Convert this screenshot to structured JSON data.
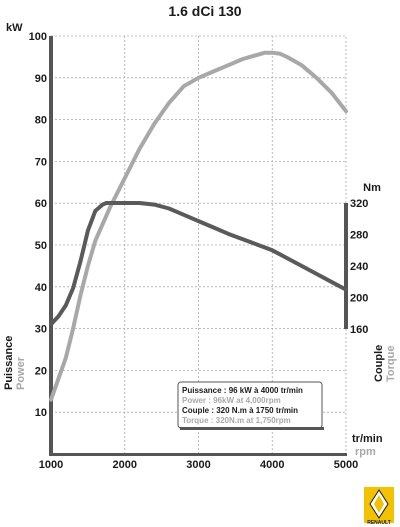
{
  "chart_data": {
    "type": "line",
    "title": "1.6 dCi 130",
    "x_unit_top": "tr/min",
    "x_unit_bottom": "rpm",
    "xlim": [
      1000,
      5000
    ],
    "x_ticks": [
      "1000",
      "2000",
      "3000",
      "4000",
      "5000"
    ],
    "x_tick_values": [
      1000,
      2000,
      3000,
      4000,
      5000
    ],
    "left_axis": {
      "unit": "kW",
      "label_fr": "Puissance",
      "label_en": "Power",
      "ylim": [
        0,
        100
      ],
      "ticks": [
        "10",
        "20",
        "30",
        "40",
        "50",
        "60",
        "70",
        "80",
        "90",
        "100"
      ],
      "tick_values": [
        10,
        20,
        30,
        40,
        50,
        60,
        70,
        80,
        90,
        100
      ]
    },
    "right_axis": {
      "unit": "Nm",
      "label_fr": "Couple",
      "label_en": "Torque",
      "ylim": [
        160,
        320
      ],
      "ticks": [
        "160",
        "200",
        "240",
        "280",
        "320"
      ],
      "tick_values": [
        160,
        200,
        240,
        280,
        320
      ]
    },
    "series": [
      {
        "name": "Power",
        "axis": "left",
        "color": "#a8a8a8",
        "x": [
          1000,
          1100,
          1200,
          1300,
          1400,
          1500,
          1600,
          1800,
          2000,
          2200,
          2400,
          2600,
          2800,
          3000,
          3200,
          3400,
          3600,
          3800,
          3900,
          4000,
          4100,
          4200,
          4400,
          4600,
          4800,
          5000
        ],
        "y": [
          13,
          18,
          23,
          30,
          38,
          45,
          51,
          59,
          66,
          73,
          79,
          84,
          88,
          90,
          91.5,
          93,
          94.5,
          95.5,
          96,
          96,
          95.8,
          95,
          93,
          90,
          86.5,
          82
        ]
      },
      {
        "name": "Torque",
        "axis": "right",
        "color": "#5a5a5a",
        "x": [
          1000,
          1100,
          1200,
          1300,
          1400,
          1500,
          1600,
          1700,
          1750,
          1800,
          2000,
          2200,
          2400,
          2600,
          2800,
          3000,
          3200,
          3400,
          3600,
          3800,
          4000,
          4200,
          4400,
          4600,
          4800,
          5000
        ],
        "y": [
          166,
          176,
          190,
          212,
          246,
          285,
          310,
          318,
          320,
          320,
          320,
          320,
          318,
          313,
          305,
          297,
          289,
          281,
          274,
          267,
          260,
          250,
          240,
          230,
          220,
          210
        ]
      }
    ],
    "legend": {
      "placement": "bottom-right",
      "lines": [
        {
          "text": "Puissance : 96 kW à 4000 tr/min",
          "color": "#1a1a1a"
        },
        {
          "text": "Power : 96kW at 4,000rpm",
          "color": "#a8a8a8"
        },
        {
          "text": "Couple : 320 N.m à 1750 tr/min",
          "color": "#1a1a1a"
        },
        {
          "text": "Torque : 320N.m at 1,750rpm",
          "color": "#a8a8a8"
        }
      ]
    },
    "grid": true
  },
  "logo": {
    "text": "RENAULT",
    "colors": {
      "background": "#f2c200",
      "diamond": "#ffffff",
      "text": "#1a1a1a"
    }
  }
}
